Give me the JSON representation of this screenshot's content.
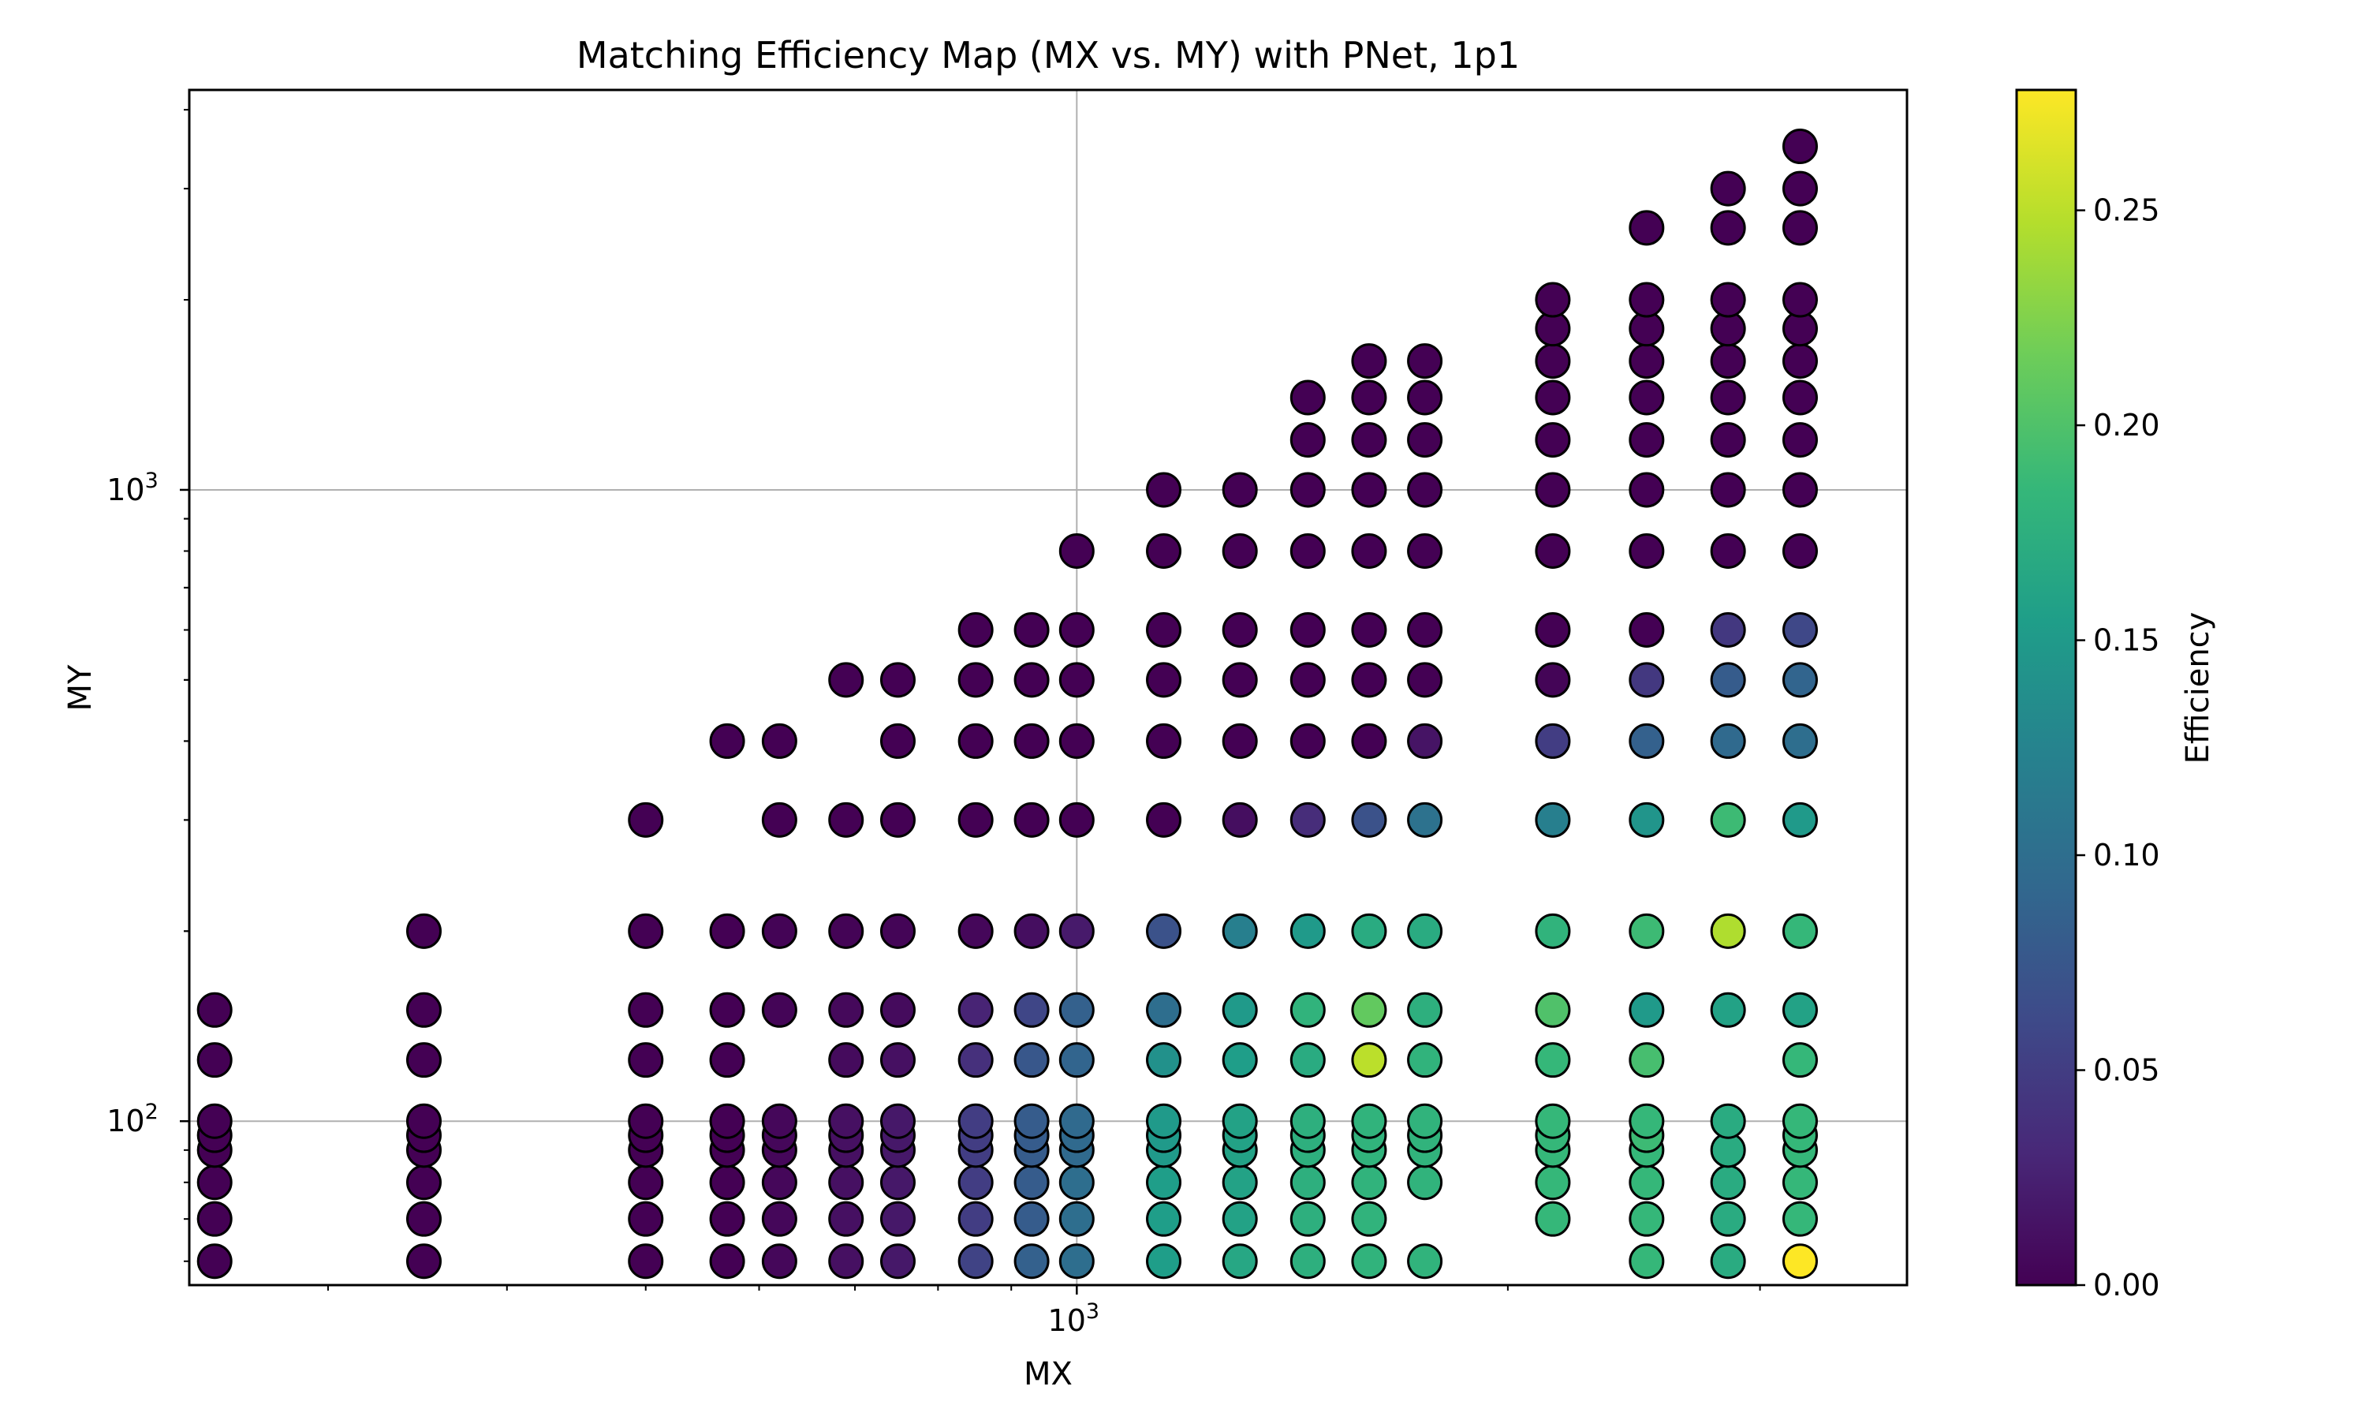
{
  "chart_data": {
    "type": "scatter",
    "title": "Matching Efficiency Map (MX vs. MY) with PNet, 1p1",
    "xlabel": "MX",
    "ylabel": "MY",
    "x_scale": "log",
    "y_scale": "log",
    "xlim": [
      240,
      3800
    ],
    "ylim": [
      55,
      4300
    ],
    "grid": true,
    "x_ticks": [
      {
        "value": 1000,
        "base": "10",
        "exp": "3"
      }
    ],
    "y_ticks": [
      {
        "value": 100,
        "base": "10",
        "exp": "2"
      },
      {
        "value": 1000,
        "base": "10",
        "exp": "3"
      }
    ],
    "colorbar": {
      "label": "Efficiency",
      "colormap": "viridis",
      "range": [
        0,
        0.278
      ],
      "ticks": [
        "0.00",
        "0.05",
        "0.10",
        "0.15",
        "0.20",
        "0.25"
      ],
      "tick_values": [
        0,
        0.05,
        0.1,
        0.15,
        0.2,
        0.25
      ]
    },
    "marker_edge_color": "#000000",
    "columns": [
      {
        "mx": 250,
        "points": [
          [
            60,
            0
          ],
          [
            70,
            0
          ],
          [
            80,
            0
          ],
          [
            90,
            0
          ],
          [
            95,
            0
          ],
          [
            100,
            0
          ],
          [
            125,
            0
          ],
          [
            150,
            0
          ]
        ]
      },
      {
        "mx": 350,
        "points": [
          [
            60,
            0
          ],
          [
            70,
            0
          ],
          [
            80,
            0
          ],
          [
            90,
            0
          ],
          [
            95,
            0
          ],
          [
            100,
            0
          ],
          [
            125,
            0
          ],
          [
            150,
            0
          ],
          [
            200,
            0
          ]
        ]
      },
      {
        "mx": 500,
        "points": [
          [
            60,
            0
          ],
          [
            70,
            0
          ],
          [
            80,
            0
          ],
          [
            90,
            0
          ],
          [
            95,
            0
          ],
          [
            100,
            0
          ],
          [
            125,
            0
          ],
          [
            150,
            0
          ],
          [
            200,
            0
          ],
          [
            300,
            0
          ]
        ]
      },
      {
        "mx": 570,
        "points": [
          [
            60,
            0
          ],
          [
            70,
            0
          ],
          [
            80,
            0
          ],
          [
            90,
            0
          ],
          [
            95,
            0
          ],
          [
            100,
            0
          ],
          [
            125,
            0
          ],
          [
            150,
            0
          ],
          [
            200,
            0
          ],
          [
            400,
            0
          ]
        ]
      },
      {
        "mx": 620,
        "points": [
          [
            60,
            0.005
          ],
          [
            70,
            0.005
          ],
          [
            80,
            0.005
          ],
          [
            90,
            0.005
          ],
          [
            95,
            0.005
          ],
          [
            100,
            0.005
          ],
          [
            150,
            0.003
          ],
          [
            200,
            0.002
          ],
          [
            300,
            0
          ],
          [
            400,
            0
          ]
        ]
      },
      {
        "mx": 690,
        "points": [
          [
            60,
            0.012
          ],
          [
            70,
            0.012
          ],
          [
            80,
            0.012
          ],
          [
            90,
            0.012
          ],
          [
            95,
            0.012
          ],
          [
            100,
            0.012
          ],
          [
            125,
            0.008
          ],
          [
            150,
            0.006
          ],
          [
            200,
            0.002
          ],
          [
            300,
            0
          ],
          [
            500,
            0
          ]
        ]
      },
      {
        "mx": 750,
        "points": [
          [
            60,
            0.018
          ],
          [
            70,
            0.018
          ],
          [
            80,
            0.018
          ],
          [
            90,
            0.018
          ],
          [
            95,
            0.018
          ],
          [
            100,
            0.018
          ],
          [
            125,
            0.012
          ],
          [
            150,
            0.008
          ],
          [
            200,
            0.003
          ],
          [
            300,
            0
          ],
          [
            400,
            0
          ],
          [
            500,
            0
          ]
        ]
      },
      {
        "mx": 850,
        "points": [
          [
            60,
            0.055
          ],
          [
            70,
            0.05
          ],
          [
            80,
            0.05
          ],
          [
            90,
            0.05
          ],
          [
            95,
            0.05
          ],
          [
            100,
            0.05
          ],
          [
            125,
            0.038
          ],
          [
            150,
            0.028
          ],
          [
            200,
            0.005
          ],
          [
            300,
            0
          ],
          [
            400,
            0
          ],
          [
            500,
            0
          ],
          [
            600,
            0
          ]
        ]
      },
      {
        "mx": 930,
        "points": [
          [
            60,
            0.085
          ],
          [
            70,
            0.08
          ],
          [
            80,
            0.08
          ],
          [
            90,
            0.08
          ],
          [
            95,
            0.08
          ],
          [
            100,
            0.08
          ],
          [
            125,
            0.075
          ],
          [
            150,
            0.058
          ],
          [
            200,
            0.01
          ],
          [
            300,
            0
          ],
          [
            400,
            0
          ],
          [
            500,
            0
          ],
          [
            600,
            0
          ]
        ]
      },
      {
        "mx": 1000,
        "points": [
          [
            60,
            0.1
          ],
          [
            70,
            0.1
          ],
          [
            80,
            0.1
          ],
          [
            90,
            0.095
          ],
          [
            95,
            0.095
          ],
          [
            100,
            0.095
          ],
          [
            125,
            0.09
          ],
          [
            150,
            0.085
          ],
          [
            200,
            0.02
          ],
          [
            300,
            0
          ],
          [
            400,
            0
          ],
          [
            500,
            0
          ],
          [
            600,
            0
          ],
          [
            800,
            0
          ]
        ]
      },
      {
        "mx": 1150,
        "points": [
          [
            60,
            0.155
          ],
          [
            70,
            0.155
          ],
          [
            80,
            0.155
          ],
          [
            90,
            0.15
          ],
          [
            95,
            0.15
          ],
          [
            100,
            0.15
          ],
          [
            125,
            0.14
          ],
          [
            150,
            0.1
          ],
          [
            200,
            0.07
          ],
          [
            300,
            0
          ],
          [
            400,
            0
          ],
          [
            500,
            0
          ],
          [
            600,
            0
          ],
          [
            800,
            0
          ],
          [
            1000,
            0
          ]
        ]
      },
      {
        "mx": 1300,
        "points": [
          [
            60,
            0.165
          ],
          [
            70,
            0.16
          ],
          [
            80,
            0.16
          ],
          [
            90,
            0.16
          ],
          [
            95,
            0.16
          ],
          [
            100,
            0.16
          ],
          [
            125,
            0.155
          ],
          [
            150,
            0.15
          ],
          [
            200,
            0.12
          ],
          [
            300,
            0.01
          ],
          [
            400,
            0
          ],
          [
            500,
            0
          ],
          [
            600,
            0
          ],
          [
            800,
            0
          ],
          [
            1000,
            0
          ]
        ]
      },
      {
        "mx": 1450,
        "points": [
          [
            60,
            0.175
          ],
          [
            70,
            0.175
          ],
          [
            80,
            0.175
          ],
          [
            90,
            0.175
          ],
          [
            95,
            0.175
          ],
          [
            100,
            0.175
          ],
          [
            125,
            0.17
          ],
          [
            150,
            0.18
          ],
          [
            200,
            0.15
          ],
          [
            300,
            0.035
          ],
          [
            400,
            0
          ],
          [
            500,
            0
          ],
          [
            600,
            0
          ],
          [
            800,
            0
          ],
          [
            1000,
            0
          ],
          [
            1200,
            0
          ],
          [
            1400,
            0
          ]
        ]
      },
      {
        "mx": 1600,
        "points": [
          [
            60,
            0.18
          ],
          [
            70,
            0.18
          ],
          [
            80,
            0.18
          ],
          [
            90,
            0.18
          ],
          [
            95,
            0.18
          ],
          [
            100,
            0.18
          ],
          [
            125,
            0.25
          ],
          [
            150,
            0.21
          ],
          [
            200,
            0.17
          ],
          [
            300,
            0.07
          ],
          [
            400,
            0
          ],
          [
            500,
            0
          ],
          [
            600,
            0
          ],
          [
            800,
            0
          ],
          [
            1000,
            0
          ],
          [
            1200,
            0
          ],
          [
            1400,
            0
          ],
          [
            1600,
            0
          ]
        ]
      },
      {
        "mx": 1750,
        "points": [
          [
            60,
            0.18
          ],
          [
            80,
            0.18
          ],
          [
            90,
            0.18
          ],
          [
            95,
            0.18
          ],
          [
            100,
            0.18
          ],
          [
            125,
            0.18
          ],
          [
            150,
            0.175
          ],
          [
            200,
            0.17
          ],
          [
            300,
            0.105
          ],
          [
            400,
            0.015
          ],
          [
            500,
            0
          ],
          [
            600,
            0
          ],
          [
            800,
            0
          ],
          [
            1000,
            0
          ],
          [
            1200,
            0
          ],
          [
            1400,
            0
          ],
          [
            1600,
            0
          ]
        ]
      },
      {
        "mx": 2150,
        "points": [
          [
            70,
            0.185
          ],
          [
            80,
            0.185
          ],
          [
            90,
            0.185
          ],
          [
            95,
            0.185
          ],
          [
            100,
            0.185
          ],
          [
            125,
            0.185
          ],
          [
            150,
            0.2
          ],
          [
            200,
            0.18
          ],
          [
            300,
            0.12
          ],
          [
            400,
            0.05
          ],
          [
            500,
            0.003
          ],
          [
            600,
            0
          ],
          [
            800,
            0
          ],
          [
            1000,
            0
          ],
          [
            1200,
            0
          ],
          [
            1400,
            0
          ],
          [
            1600,
            0
          ],
          [
            1800,
            0
          ],
          [
            2000,
            0
          ]
        ]
      },
      {
        "mx": 2500,
        "points": [
          [
            60,
            0.185
          ],
          [
            70,
            0.185
          ],
          [
            80,
            0.185
          ],
          [
            90,
            0.185
          ],
          [
            95,
            0.19
          ],
          [
            100,
            0.185
          ],
          [
            125,
            0.195
          ],
          [
            150,
            0.15
          ],
          [
            200,
            0.19
          ],
          [
            300,
            0.145
          ],
          [
            400,
            0.085
          ],
          [
            500,
            0.045
          ],
          [
            600,
            0
          ],
          [
            800,
            0
          ],
          [
            1000,
            0
          ],
          [
            1200,
            0
          ],
          [
            1400,
            0
          ],
          [
            1600,
            0
          ],
          [
            1800,
            0
          ],
          [
            2000,
            0
          ],
          [
            2600,
            0
          ]
        ]
      },
      {
        "mx": 2850,
        "points": [
          [
            60,
            0.17
          ],
          [
            70,
            0.17
          ],
          [
            80,
            0.17
          ],
          [
            90,
            0.17
          ],
          [
            100,
            0.17
          ],
          [
            150,
            0.16
          ],
          [
            200,
            0.245
          ],
          [
            300,
            0.19
          ],
          [
            400,
            0.095
          ],
          [
            500,
            0.08
          ],
          [
            600,
            0.045
          ],
          [
            800,
            0
          ],
          [
            1000,
            0
          ],
          [
            1200,
            0
          ],
          [
            1400,
            0
          ],
          [
            1600,
            0
          ],
          [
            1800,
            0
          ],
          [
            2000,
            0
          ],
          [
            2600,
            0
          ],
          [
            3000,
            0
          ]
        ]
      },
      {
        "mx": 3200,
        "points": [
          [
            60,
            0.278
          ],
          [
            70,
            0.185
          ],
          [
            80,
            0.185
          ],
          [
            90,
            0.185
          ],
          [
            95,
            0.185
          ],
          [
            100,
            0.185
          ],
          [
            125,
            0.185
          ],
          [
            150,
            0.16
          ],
          [
            200,
            0.185
          ],
          [
            300,
            0.15
          ],
          [
            400,
            0.1
          ],
          [
            500,
            0.09
          ],
          [
            600,
            0.06
          ],
          [
            800,
            0
          ],
          [
            1000,
            0
          ],
          [
            1200,
            0
          ],
          [
            1400,
            0
          ],
          [
            1600,
            0
          ],
          [
            1800,
            0
          ],
          [
            2000,
            0
          ],
          [
            2600,
            0
          ],
          [
            3000,
            0
          ],
          [
            3500,
            0
          ]
        ]
      }
    ]
  }
}
